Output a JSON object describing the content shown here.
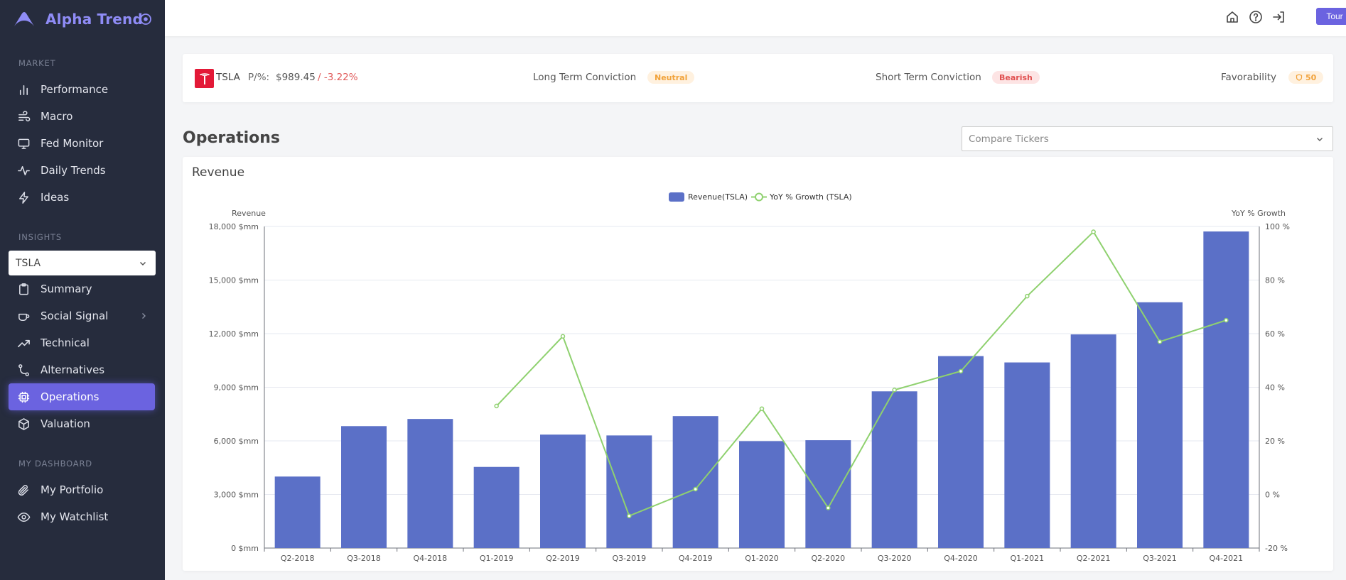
{
  "brand": {
    "name": "Alpha Trend"
  },
  "sidebar": {
    "sections": {
      "market": "MARKET",
      "insights": "INSIGHTS",
      "dashboard": "MY DASHBOARD"
    },
    "market_items": [
      {
        "label": "Performance",
        "icon": "bar-chart-icon"
      },
      {
        "label": "Macro",
        "icon": "wind-icon"
      },
      {
        "label": "Fed Monitor",
        "icon": "monitor-icon"
      },
      {
        "label": "Daily Trends",
        "icon": "activity-icon"
      },
      {
        "label": "Ideas",
        "icon": "lightning-icon"
      }
    ],
    "ticker_select": "TSLA",
    "insight_items": [
      {
        "label": "Summary",
        "icon": "clipboard-icon"
      },
      {
        "label": "Social Signal",
        "icon": "coffee-icon"
      },
      {
        "label": "Technical",
        "icon": "trending-up-icon"
      },
      {
        "label": "Alternatives",
        "icon": "git-branch-icon"
      },
      {
        "label": "Operations",
        "icon": "cpu-icon"
      },
      {
        "label": "Valuation",
        "icon": "box-icon"
      }
    ],
    "dashboard_items": [
      {
        "label": "My Portfolio",
        "icon": "paperclip-icon"
      },
      {
        "label": "My Watchlist",
        "icon": "eye-icon"
      }
    ]
  },
  "topbar": {
    "tour_label": "Tour"
  },
  "ticker": {
    "symbol": "TSLA",
    "pe_label": "P/%:",
    "price": "$989.45",
    "change": "/ -3.22%",
    "long_term_label": "Long Term Conviction",
    "long_term_value": "Neutral",
    "short_term_label": "Short Term Conviction",
    "short_term_value": "Bearish",
    "favorability_label": "Favorability",
    "favorability_value": "50"
  },
  "operations": {
    "title": "Operations",
    "compare_placeholder": "Compare Tickers"
  },
  "colors": {
    "accent": "#6b63e0",
    "bar": "#5b70c7",
    "line": "#8fd16f"
  },
  "chart_data": {
    "type": "bar",
    "title": "Revenue",
    "categories": [
      "Q2-2018",
      "Q3-2018",
      "Q4-2018",
      "Q1-2019",
      "Q2-2019",
      "Q3-2019",
      "Q4-2019",
      "Q1-2020",
      "Q2-2020",
      "Q3-2020",
      "Q4-2020",
      "Q1-2021",
      "Q2-2021",
      "Q3-2021",
      "Q4-2021"
    ],
    "series": [
      {
        "name": "Revenue(TSLA)",
        "type": "bar",
        "axis": "left",
        "values": [
          4002,
          6824,
          7226,
          4541,
          6350,
          6303,
          7384,
          5985,
          6036,
          8771,
          10744,
          10389,
          11958,
          13757,
          17719
        ]
      },
      {
        "name": "YoY % Growth (TSLA)",
        "type": "line",
        "axis": "right",
        "values": [
          null,
          null,
          null,
          33,
          59,
          -8,
          2,
          32,
          -5,
          39,
          46,
          74,
          98,
          57,
          65
        ]
      }
    ],
    "ylabel_left": "Revenue",
    "ylabel_right": "YoY % Growth",
    "ylim_left": [
      0,
      18000
    ],
    "yticks_left": [
      "0 $mm",
      "3,000 $mm",
      "6,000 $mm",
      "9,000 $mm",
      "12,000 $mm",
      "15,000 $mm",
      "18,000 $mm"
    ],
    "ylim_right": [
      -20,
      100
    ],
    "yticks_right": [
      "-20 %",
      "0 %",
      "20 %",
      "40 %",
      "60 %",
      "80 %",
      "100 %"
    ],
    "legend": "top-center",
    "grid": true
  }
}
